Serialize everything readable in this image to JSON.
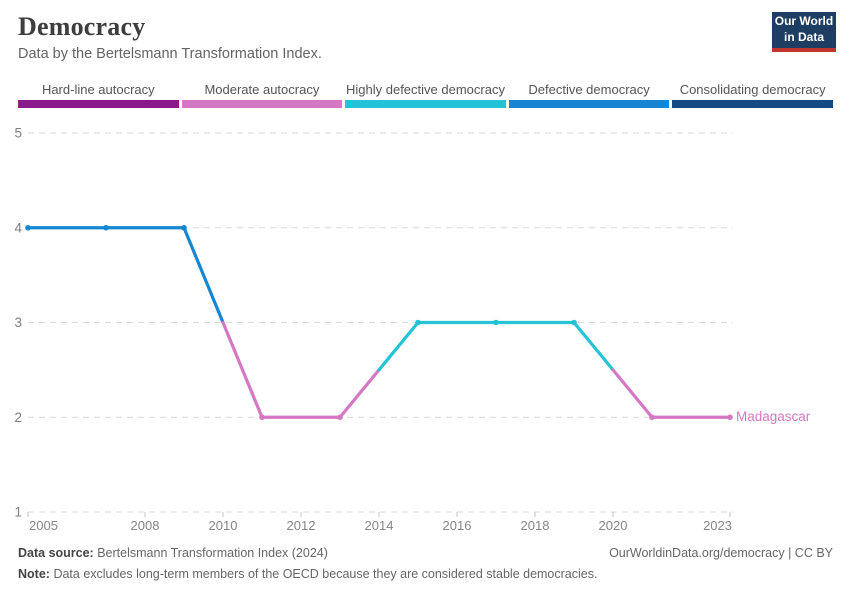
{
  "header": {
    "title": "Democracy",
    "subtitle": "Data by the Bertelsmann Transformation Index.",
    "logo": {
      "line1": "Our World",
      "line2": "in Data"
    }
  },
  "legend": {
    "categories": [
      {
        "label": "Hard-line autocracy",
        "color": "#8a1a8a"
      },
      {
        "label": "Moderate autocracy",
        "color": "#d478c5"
      },
      {
        "label": "Highly defective democracy",
        "color": "#24c3d5"
      },
      {
        "label": "Defective democracy",
        "color": "#1586d2"
      },
      {
        "label": "Consolidating democracy",
        "color": "#154b82"
      }
    ]
  },
  "chart_data": {
    "type": "line",
    "title": "Democracy (Bertelsmann Transformation Index)",
    "series_label": "Madagascar",
    "x": [
      2005,
      2007,
      2009,
      2011,
      2013,
      2015,
      2017,
      2019,
      2021,
      2023
    ],
    "values": [
      4,
      4,
      4,
      2,
      2,
      3,
      3,
      3,
      2,
      2
    ],
    "value_categories": {
      "2": "Moderate autocracy",
      "3": "Highly defective democracy",
      "4": "Defective democracy"
    },
    "value_colors": {
      "2": "#d478c5",
      "3": "#24c3d5",
      "4": "#1586d2"
    },
    "xlim": [
      2005,
      2023
    ],
    "ylim": [
      1,
      5
    ],
    "yticks": [
      1,
      2,
      3,
      4,
      5
    ],
    "xticks": [
      2005,
      2008,
      2010,
      2012,
      2014,
      2016,
      2018,
      2020,
      2023
    ],
    "grid": "horizontal-dashed",
    "gridline_color": "#d9d9d9",
    "axis_label_color": "#868686",
    "legend_position": "top-bins"
  },
  "footer": {
    "source_label": "Data source:",
    "source_value": "Bertelsmann Transformation Index (2024)",
    "link": "OurWorldinData.org/democracy | CC BY",
    "note_label": "Note:",
    "note_value": "Data excludes long-term members of the OECD because they are considered stable democracies."
  }
}
